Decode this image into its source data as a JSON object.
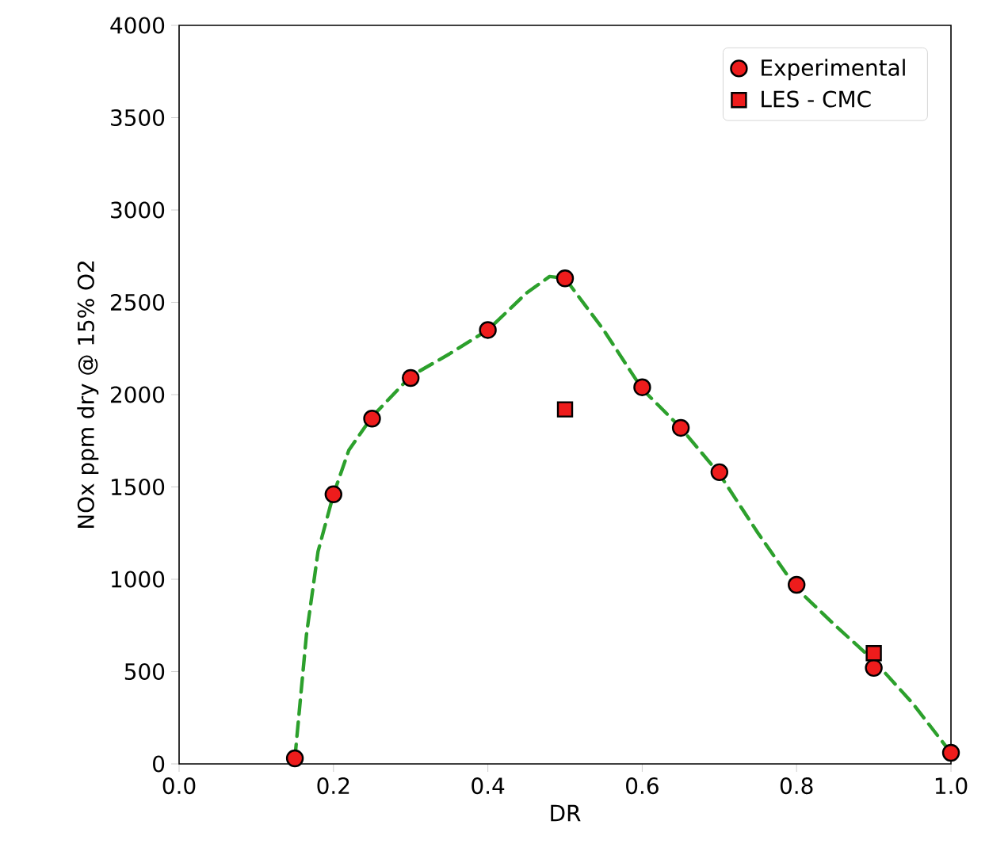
{
  "chart_data": {
    "type": "scatter",
    "xlabel": "DR",
    "ylabel": "NOx ppm dry @ 15% O2",
    "xlim": [
      0,
      1
    ],
    "ylim": [
      0,
      4000
    ],
    "xticks": [
      {
        "value": 0,
        "label": "0.0"
      },
      {
        "value": 0.2,
        "label": "0.2"
      },
      {
        "value": 0.4,
        "label": "0.4"
      },
      {
        "value": 0.6,
        "label": "0.6"
      },
      {
        "value": 0.8,
        "label": "0.8"
      },
      {
        "value": 1,
        "label": "1.0"
      }
    ],
    "yticks": [
      0,
      500,
      1000,
      1500,
      2000,
      2500,
      3000,
      3500,
      4000
    ],
    "legend": "top right",
    "series": [
      {
        "type": "line",
        "color": "#2ca02c",
        "line_style": "dashed",
        "marker": "none",
        "x": [
          0.15,
          0.165,
          0.18,
          0.2,
          0.22,
          0.25,
          0.3,
          0.35,
          0.4,
          0.45,
          0.48,
          0.5,
          0.55,
          0.6,
          0.65,
          0.7,
          0.75,
          0.8,
          0.85,
          0.9,
          0.95,
          1.0
        ],
        "values": [
          30,
          700,
          1150,
          1460,
          1700,
          1880,
          2100,
          2220,
          2350,
          2550,
          2640,
          2630,
          2350,
          2030,
          1820,
          1570,
          1250,
          950,
          750,
          560,
          330,
          60
        ]
      },
      {
        "name": "Experimental",
        "type": "scatter",
        "color": "#ee1c1c",
        "marker": "circle",
        "x": [
          0.15,
          0.2,
          0.25,
          0.3,
          0.4,
          0.5,
          0.6,
          0.65,
          0.7,
          0.8,
          0.9,
          1.0
        ],
        "values": [
          30,
          1460,
          1870,
          2090,
          2350,
          2630,
          2040,
          1820,
          1580,
          970,
          520,
          60
        ]
      },
      {
        "name": "LES - CMC",
        "type": "scatter",
        "color": "#ee1c1c",
        "marker": "square",
        "x": [
          0.5,
          0.9
        ],
        "values": [
          1920,
          600
        ]
      }
    ]
  }
}
